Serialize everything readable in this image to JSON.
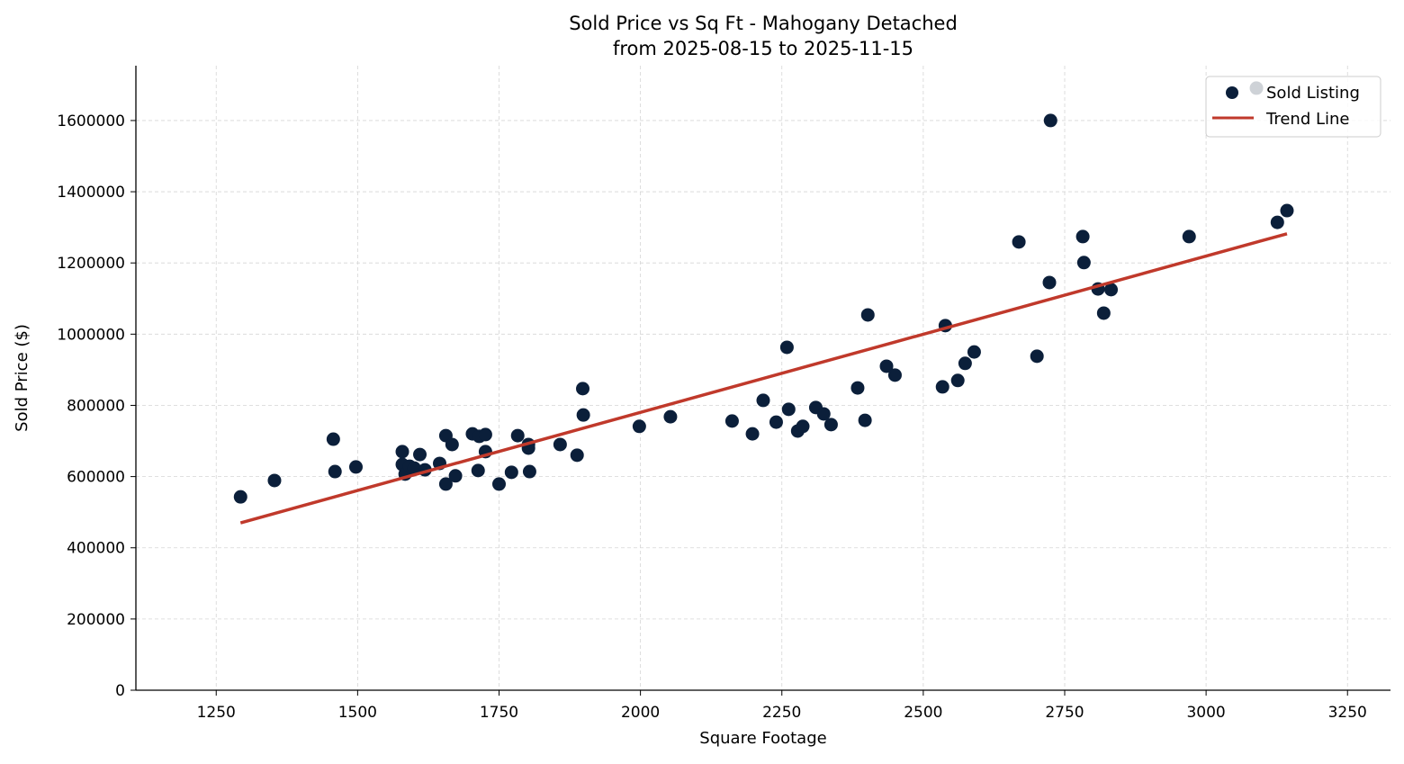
{
  "chart_data": {
    "type": "scatter",
    "title": "Sold Price vs Sq Ft - Mahogany Detached",
    "subtitle": "from 2025-08-15 to 2025-11-15",
    "xlabel": "Square Footage",
    "ylabel": "Sold Price ($)",
    "xlim": [
      1108,
      3326
    ],
    "ylim": [
      0,
      1754000
    ],
    "xticks": [
      1250,
      1500,
      1750,
      2000,
      2250,
      2500,
      2750,
      3000,
      3250
    ],
    "yticks": [
      0,
      200000,
      400000,
      600000,
      800000,
      1000000,
      1200000,
      1400000,
      1600000
    ],
    "grid": true,
    "legend_position": "top-right",
    "series": [
      {
        "name": "Sold Listing",
        "color": "#0b1f3a",
        "points": [
          [
            1293,
            543000
          ],
          [
            1353,
            589000
          ],
          [
            1457,
            705000
          ],
          [
            1460,
            614000
          ],
          [
            1497,
            627000
          ],
          [
            1579,
            670000
          ],
          [
            1579,
            634000
          ],
          [
            1584,
            607000
          ],
          [
            1592,
            629000
          ],
          [
            1600,
            624000
          ],
          [
            1610,
            662000
          ],
          [
            1619,
            619000
          ],
          [
            1645,
            637000
          ],
          [
            1656,
            715000
          ],
          [
            1656,
            579000
          ],
          [
            1667,
            690000
          ],
          [
            1673,
            602000
          ],
          [
            1703,
            720000
          ],
          [
            1713,
            617000
          ],
          [
            1715,
            713000
          ],
          [
            1726,
            718000
          ],
          [
            1726,
            670000
          ],
          [
            1750,
            579000
          ],
          [
            1772,
            612000
          ],
          [
            1783,
            715000
          ],
          [
            1802,
            690000
          ],
          [
            1802,
            680000
          ],
          [
            1804,
            614000
          ],
          [
            1858,
            690000
          ],
          [
            1888,
            660000
          ],
          [
            1898,
            847000
          ],
          [
            1899,
            773000
          ],
          [
            1998,
            741000
          ],
          [
            2053,
            768000
          ],
          [
            2162,
            756000
          ],
          [
            2198,
            720000
          ],
          [
            2217,
            814000
          ],
          [
            2240,
            753000
          ],
          [
            2259,
            963000
          ],
          [
            2262,
            789000
          ],
          [
            2278,
            728000
          ],
          [
            2287,
            741000
          ],
          [
            2310,
            794000
          ],
          [
            2324,
            776000
          ],
          [
            2337,
            746000
          ],
          [
            2384,
            849000
          ],
          [
            2397,
            758000
          ],
          [
            2402,
            1054000
          ],
          [
            2435,
            910000
          ],
          [
            2450,
            885000
          ],
          [
            2534,
            852000
          ],
          [
            2539,
            1024000
          ],
          [
            2561,
            870000
          ],
          [
            2574,
            918000
          ],
          [
            2590,
            950000
          ],
          [
            2669,
            1259000
          ],
          [
            2701,
            938000
          ],
          [
            2723,
            1145000
          ],
          [
            2725,
            1600000
          ],
          [
            2782,
            1274000
          ],
          [
            2784,
            1201000
          ],
          [
            2809,
            1127000
          ],
          [
            2819,
            1059000
          ],
          [
            2832,
            1125000
          ],
          [
            2970,
            1274000
          ],
          [
            3089,
            1691000
          ],
          [
            3126,
            1314000
          ],
          [
            3143,
            1347000
          ]
        ]
      },
      {
        "name": "Trend Line",
        "type": "line",
        "color": "#c0392b",
        "points": [
          [
            1293,
            470000
          ],
          [
            3143,
            1282000
          ]
        ]
      }
    ]
  }
}
